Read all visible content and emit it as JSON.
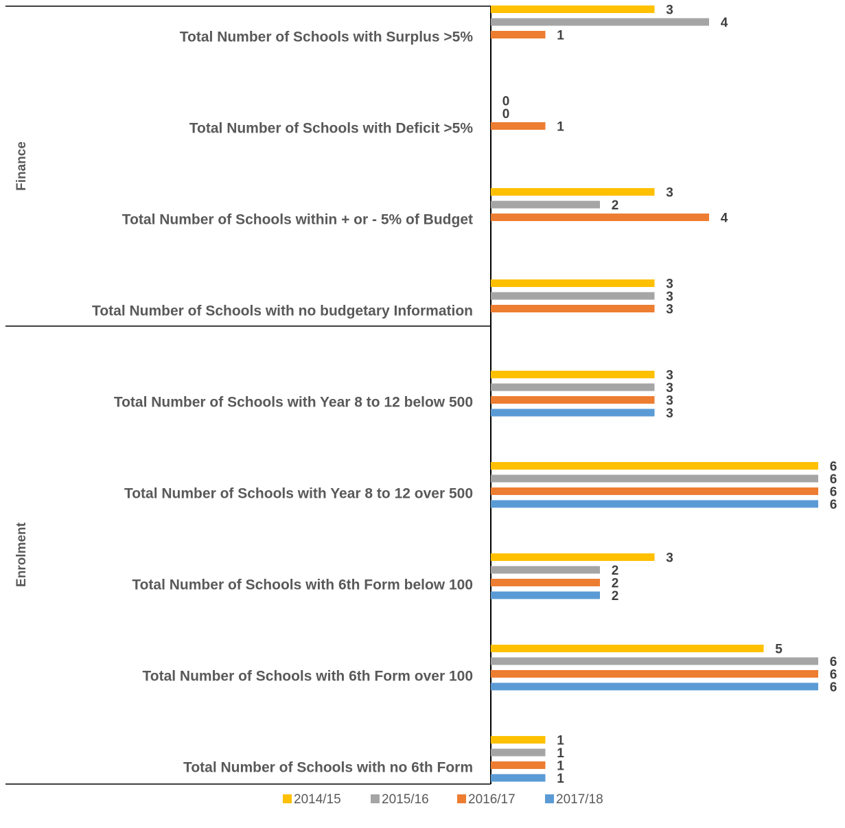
{
  "chart_data": {
    "type": "bar",
    "orientation": "horizontal",
    "xlim": [
      0,
      6
    ],
    "grid": false,
    "legend_position": "bottom",
    "groups": [
      {
        "name": "Finance",
        "categories": [
          0,
          1,
          2,
          3
        ]
      },
      {
        "name": "Enrolment",
        "categories": [
          4,
          5,
          6,
          7,
          8
        ]
      }
    ],
    "categories": [
      "Total Number of Schools with Surplus >5%",
      "Total Number of Schools with Deficit >5%",
      "Total Number of Schools within + or - 5% of Budget",
      "Total Number of Schools with no budgetary Information",
      "Total Number of Schools with Year 8 to 12 below 500",
      "Total Number of Schools with Year 8 to 12 over 500",
      "Total Number of Schools with 6th Form below 100",
      "Total Number of Schools with 6th Form over 100",
      "Total Number of Schools with no 6th Form"
    ],
    "series": [
      {
        "name": "2014/15",
        "color": "#FFC000",
        "values": [
          3,
          0,
          3,
          3,
          3,
          6,
          3,
          5,
          1
        ]
      },
      {
        "name": "2015/16",
        "color": "#A5A5A5",
        "values": [
          4,
          0,
          2,
          3,
          3,
          6,
          2,
          6,
          1
        ]
      },
      {
        "name": "2016/17",
        "color": "#ED7D31",
        "values": [
          1,
          1,
          4,
          3,
          3,
          6,
          2,
          6,
          1
        ]
      },
      {
        "name": "2017/18",
        "color": "#5B9BD5",
        "values": [
          null,
          null,
          null,
          null,
          3,
          6,
          2,
          6,
          1
        ]
      }
    ]
  }
}
